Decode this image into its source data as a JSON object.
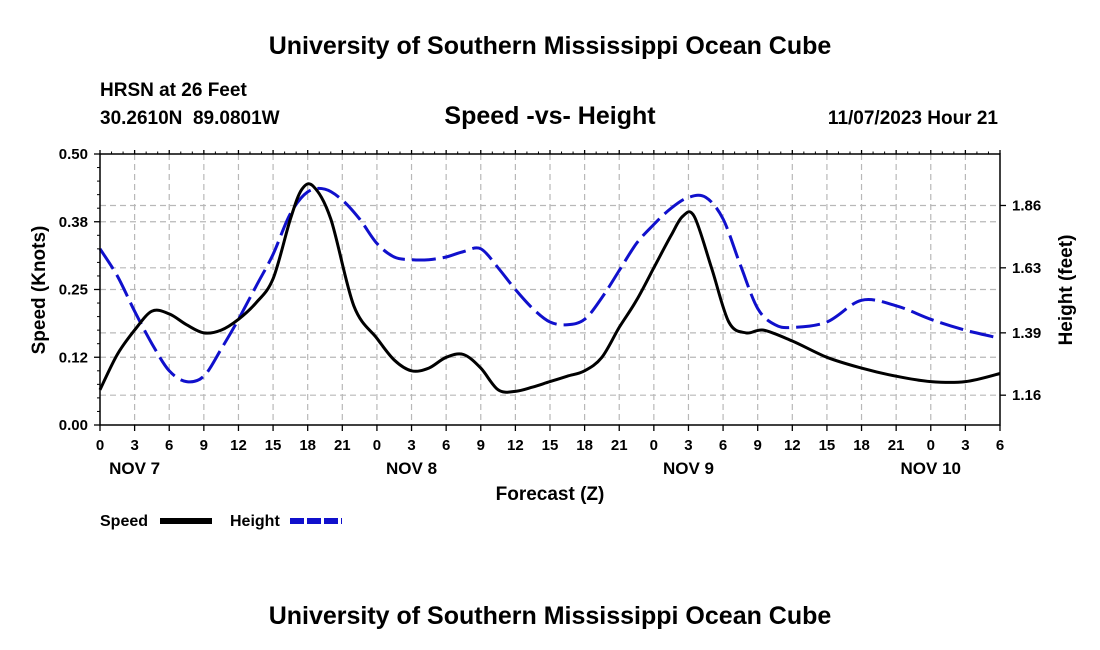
{
  "header": {
    "title_top": "University of Southern Mississippi Ocean Cube",
    "title_bottom": "University of Southern Mississippi Ocean Cube",
    "station": "HRSN at 26 Feet",
    "coords": "30.2610N  89.0801W",
    "subtitle": "Speed -vs- Height",
    "datetime": "11/07/2023 Hour 21"
  },
  "chart_data": {
    "type": "line",
    "title": "Speed -vs- Height",
    "xlabel": "Forecast (Z)",
    "ylabel": "Speed (Knots)",
    "y2label": "Height (feet)",
    "x_tick_labels": [
      "0",
      "3",
      "6",
      "9",
      "12",
      "15",
      "18",
      "21",
      "0",
      "3",
      "6",
      "9",
      "12",
      "15",
      "18",
      "21",
      "0",
      "3",
      "6",
      "9",
      "12",
      "15",
      "18",
      "21",
      "0",
      "3",
      "6"
    ],
    "date_labels": [
      {
        "label": "NOV 7",
        "hour": 3
      },
      {
        "label": "NOV 8",
        "hour": 27
      },
      {
        "label": "NOV 9",
        "hour": 51
      },
      {
        "label": "NOV 10",
        "hour": 72
      }
    ],
    "xlim": [
      0,
      78
    ],
    "ylim": [
      0,
      0.5
    ],
    "y_ticks": [
      0.0,
      0.125,
      0.25,
      0.375,
      0.5
    ],
    "y_tick_labels": [
      "0.00",
      "0.12",
      "0.25",
      "0.38",
      "0.50"
    ],
    "y2lim": [
      1.05,
      2.05
    ],
    "y2_ticks": [
      1.16,
      1.39,
      1.63,
      1.86
    ],
    "y2_tick_labels": [
      "1.16",
      "1.39",
      "1.63",
      "1.86"
    ],
    "grid": true,
    "series": [
      {
        "name": "Speed",
        "axis": "left",
        "color": "#000000",
        "dash": "solid",
        "x": [
          0,
          1.5,
          3,
          4.5,
          6,
          7.5,
          9,
          10.5,
          12,
          13.5,
          15,
          16.5,
          17.5,
          18.5,
          20,
          22,
          24,
          25.5,
          27,
          28.5,
          30,
          31.5,
          33,
          34.5,
          36,
          37.5,
          39,
          40.5,
          42,
          43.5,
          45,
          46.5,
          48,
          49.5,
          50.5,
          51.5,
          53,
          54.5,
          56,
          57.5,
          60,
          63,
          66,
          69,
          72,
          75,
          78
        ],
        "y": [
          0.065,
          0.13,
          0.175,
          0.21,
          0.205,
          0.185,
          0.17,
          0.175,
          0.195,
          0.225,
          0.27,
          0.38,
          0.435,
          0.44,
          0.38,
          0.22,
          0.16,
          0.12,
          0.1,
          0.105,
          0.125,
          0.13,
          0.105,
          0.065,
          0.062,
          0.07,
          0.08,
          0.09,
          0.1,
          0.125,
          0.18,
          0.23,
          0.29,
          0.35,
          0.385,
          0.385,
          0.29,
          0.19,
          0.17,
          0.175,
          0.155,
          0.125,
          0.105,
          0.09,
          0.08,
          0.08,
          0.095
        ]
      },
      {
        "name": "Height",
        "axis": "right",
        "color": "#1010cc",
        "dash": "dashed",
        "x": [
          0,
          1.5,
          3,
          4.5,
          6,
          7.5,
          9,
          10.5,
          12,
          13.5,
          15,
          16.5,
          18,
          19.5,
          21,
          22.5,
          24,
          25.5,
          27,
          28.5,
          30,
          31.5,
          33,
          34.5,
          36,
          37.5,
          39,
          40.5,
          42,
          43.5,
          45,
          46.5,
          48,
          49.5,
          51,
          52.5,
          54,
          55.5,
          57,
          58.5,
          60,
          63,
          66,
          69,
          72,
          75,
          78
        ],
        "y": [
          1.7,
          1.6,
          1.47,
          1.35,
          1.25,
          1.21,
          1.23,
          1.33,
          1.44,
          1.56,
          1.68,
          1.83,
          1.91,
          1.92,
          1.88,
          1.81,
          1.72,
          1.67,
          1.66,
          1.66,
          1.67,
          1.69,
          1.7,
          1.63,
          1.55,
          1.48,
          1.43,
          1.42,
          1.44,
          1.52,
          1.62,
          1.72,
          1.79,
          1.85,
          1.89,
          1.89,
          1.81,
          1.64,
          1.48,
          1.42,
          1.41,
          1.43,
          1.51,
          1.49,
          1.44,
          1.4,
          1.37
        ]
      }
    ],
    "legend": [
      {
        "label": "Speed",
        "color": "#000000",
        "dash": "solid"
      },
      {
        "label": "Height",
        "color": "#1010cc",
        "dash": "dashed"
      }
    ]
  }
}
